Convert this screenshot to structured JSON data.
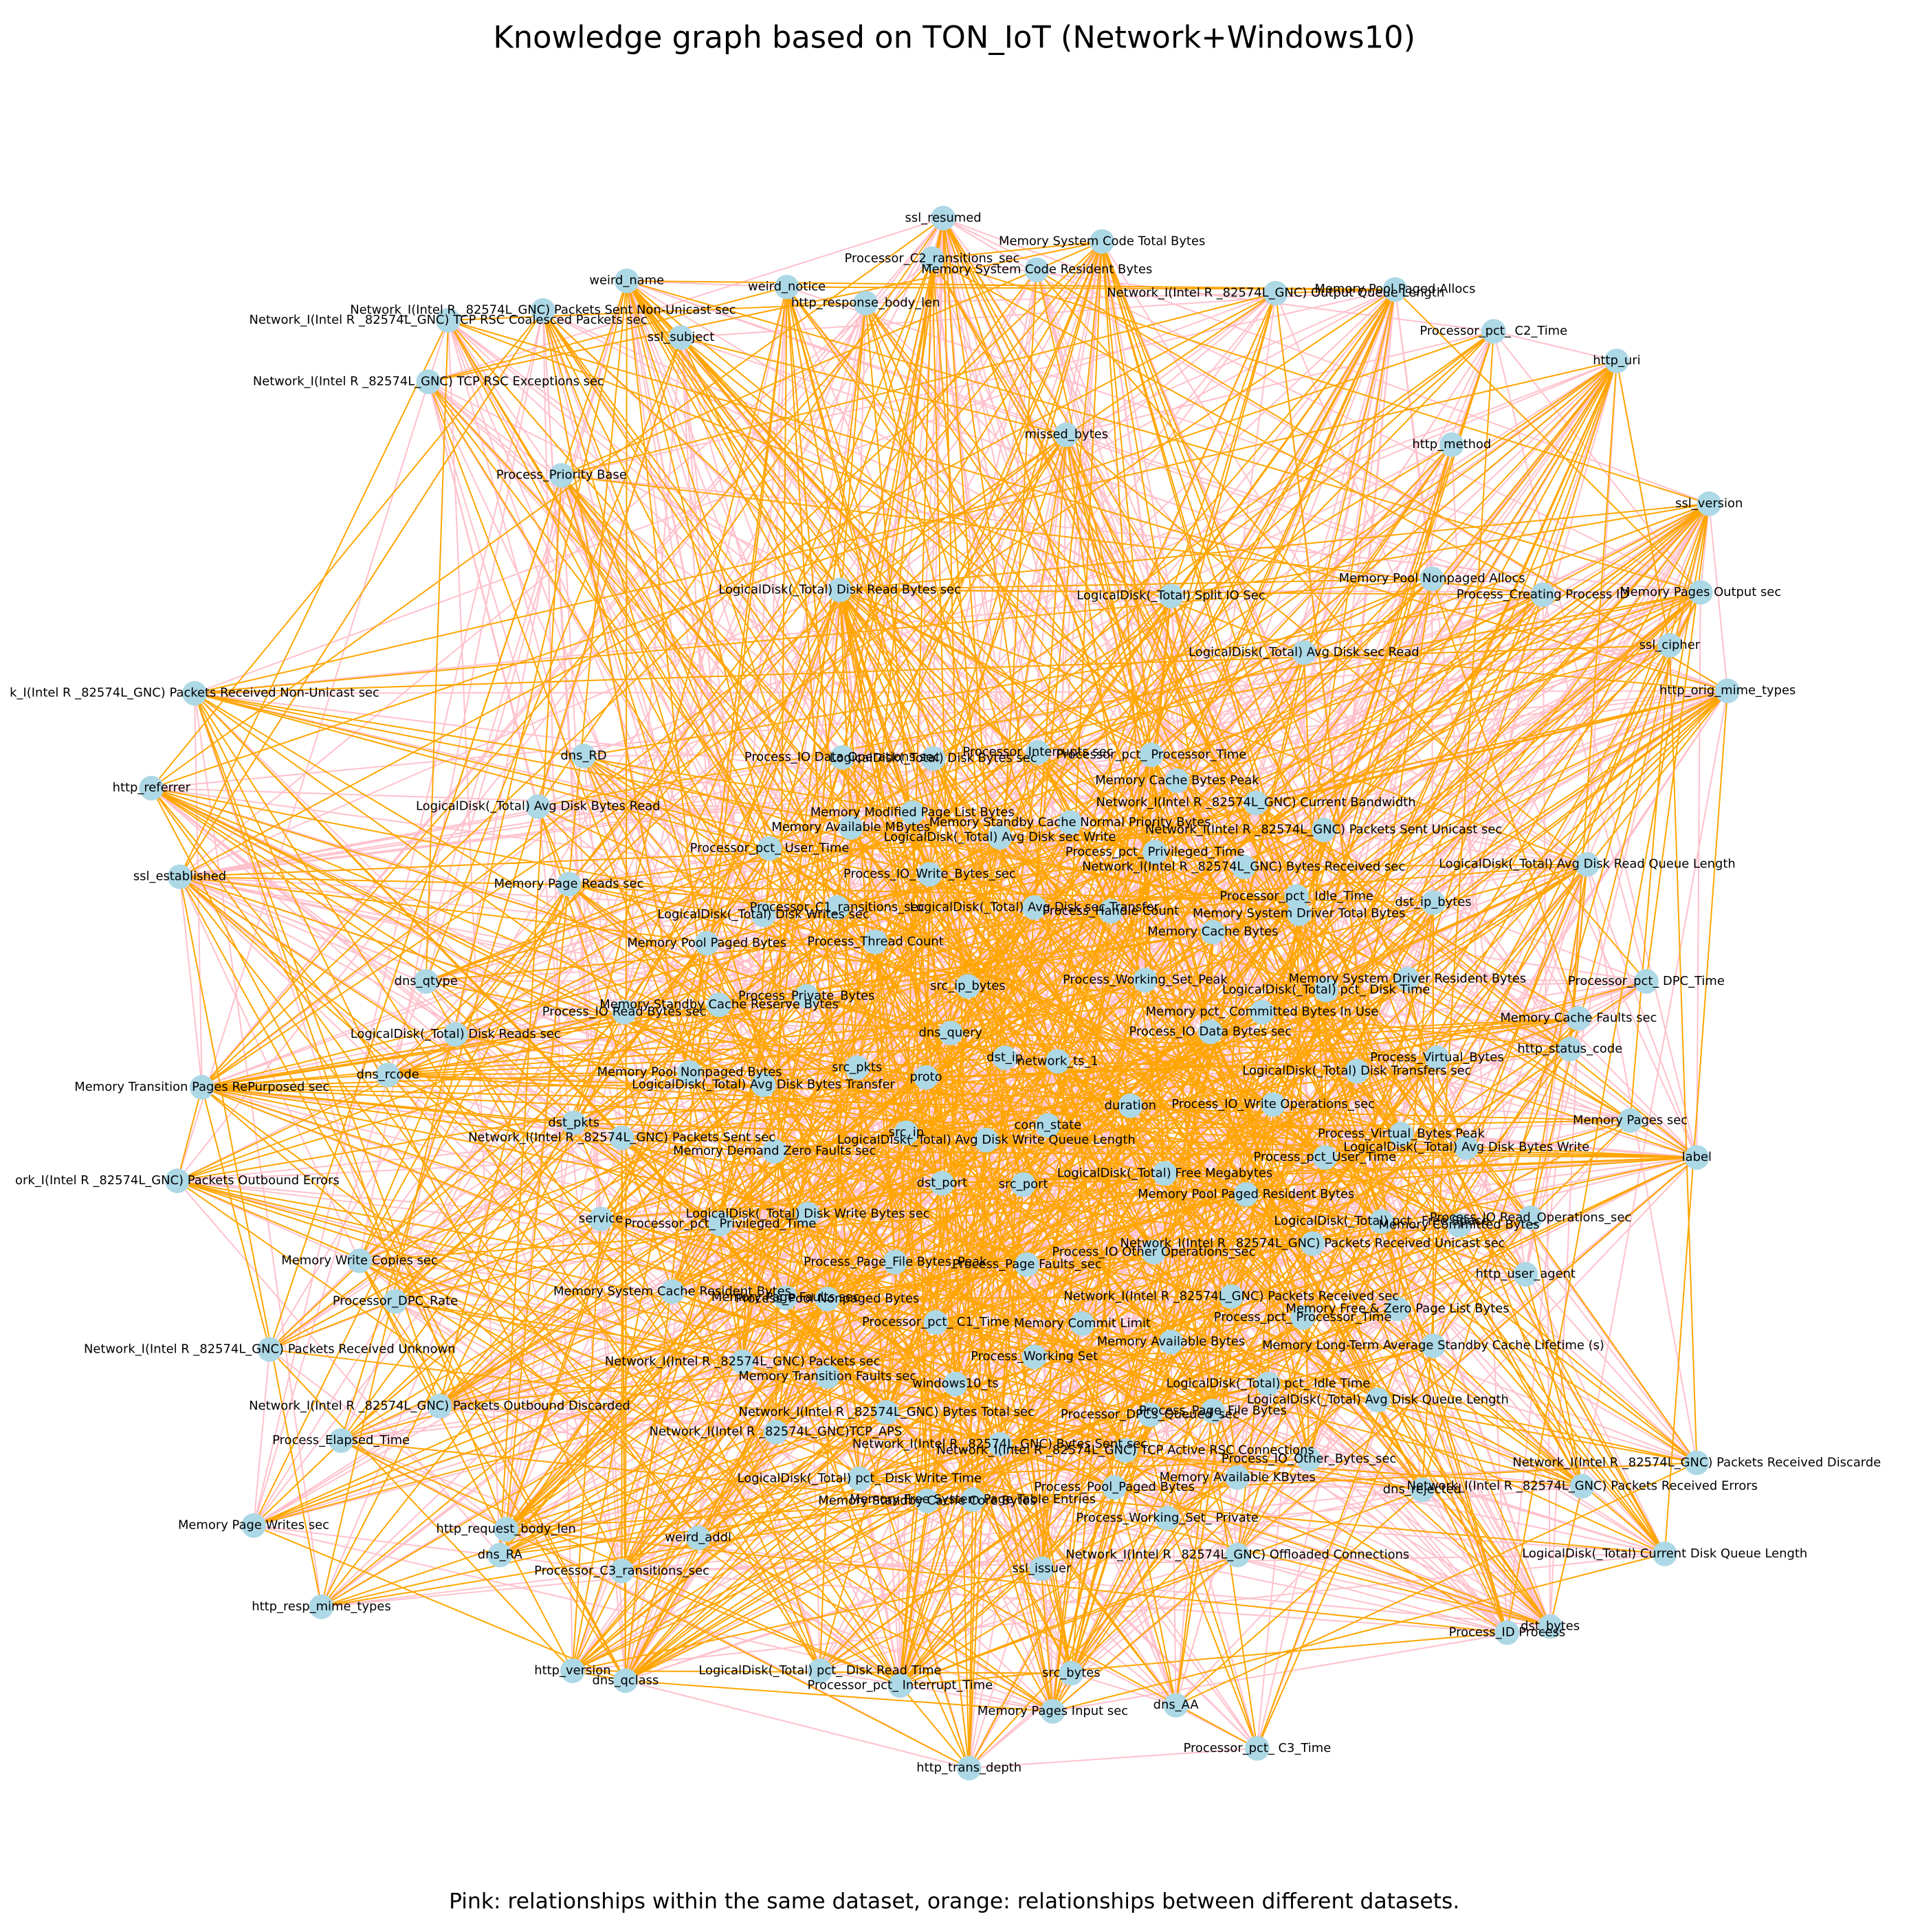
{
  "title": "Knowledge graph based on TON_IoT (Network+Windows10)",
  "caption": "Pink: relationships within the same dataset, orange: relationships between different datasets.",
  "nodes": [
    {
      "label": "ssl_resumed"
    },
    {
      "label": "Memory System Code Total Bytes"
    },
    {
      "label": "Processor_C2_ransitions_sec"
    },
    {
      "label": "Memory System Code Resident Bytes"
    },
    {
      "label": "weird_name"
    },
    {
      "label": "weird_notice"
    },
    {
      "label": "Network_I(Intel R _82574L_GNC) Packets Sent Non-Unicast sec"
    },
    {
      "label": "Network_I(Intel R _82574L_GNC) TCP RSC Coalesced Packets sec"
    },
    {
      "label": "http_response_body_len"
    },
    {
      "label": "Network_I(Intel R _82574L_GNC) Output Queue Length"
    },
    {
      "label": "Memory Pool Paged Allocs"
    },
    {
      "label": "Processor_pct_ C2_Time"
    },
    {
      "label": "ssl_subject"
    },
    {
      "label": "http_uri"
    },
    {
      "label": "Network_I(Intel R _82574L_GNC) TCP RSC Exceptions sec"
    },
    {
      "label": "missed_bytes"
    },
    {
      "label": "http_method"
    },
    {
      "label": "Process_Priority Base"
    },
    {
      "label": "ssl_version"
    },
    {
      "label": "Memory Pool Nonpaged Allocs"
    },
    {
      "label": "LogicalDisk(_Total) Disk Read Bytes sec"
    },
    {
      "label": "LogicalDisk(_Total) Split IO Sec"
    },
    {
      "label": "Process_Creating Process ID"
    },
    {
      "label": "Memory Pages Output sec"
    },
    {
      "label": "ssl_cipher"
    },
    {
      "label": "LogicalDisk(_Total) Avg  Disk sec Read"
    },
    {
      "label": "http_orig_mime_types"
    },
    {
      "label": "k_I(Intel R _82574L_GNC) Packets Received Non-Unicast sec"
    },
    {
      "label": "dns_RD"
    },
    {
      "label": "Process_IO Data Operations sec"
    },
    {
      "label": "LogicalDisk(_Total) Disk Bytes sec"
    },
    {
      "label": "Processor_Interrupts sec"
    },
    {
      "label": "Processor_pct_ Processor_Time"
    },
    {
      "label": "http_referrer"
    },
    {
      "label": "Memory Cache Bytes Peak"
    },
    {
      "label": "LogicalDisk(_Total) Avg  Disk Bytes Read"
    },
    {
      "label": "Network_I(Intel R _82574L_GNC) Current Bandwidth"
    },
    {
      "label": "Memory Modified Page List Bytes"
    },
    {
      "label": "Memory Standby Cache Normal Priority Bytes"
    },
    {
      "label": "Memory Available MBytes"
    },
    {
      "label": "LogicalDisk(_Total) Avg  Disk sec Write"
    },
    {
      "label": "Network_I(Intel R _82574L_GNC) Packets Sent Unicast sec"
    },
    {
      "label": "Processor_pct_ User_Time"
    },
    {
      "label": "Process_pct_ Privileged_Time"
    },
    {
      "label": "ssl_established"
    },
    {
      "label": "LogicalDisk(_Total) Avg  Disk Read Queue Length"
    },
    {
      "label": "Network_I(Intel R _82574L_GNC) Bytes Received sec"
    },
    {
      "label": "Process_IO_Write_Bytes_sec"
    },
    {
      "label": "Memory Page Reads sec"
    },
    {
      "label": "Processor_pct_ Idle_Time"
    },
    {
      "label": "dst_ip_bytes"
    },
    {
      "label": "Processor_C1_ransitions_sec"
    },
    {
      "label": "LogicalDisk(_Total) Avg  Disk sec Transfer"
    },
    {
      "label": "Process_Handle Count"
    },
    {
      "label": "Memory System Driver Total Bytes"
    },
    {
      "label": "LogicalDisk(_Total) Disk Writes sec"
    },
    {
      "label": "Memory Cache Bytes"
    },
    {
      "label": "Memory Pool Paged Bytes"
    },
    {
      "label": "Process_Thread Count"
    },
    {
      "label": "Processor_pct_ DPC_Time"
    },
    {
      "label": "dns_qtype"
    },
    {
      "label": "Memory System Driver Resident Bytes"
    },
    {
      "label": "Process_Working_Set_Peak"
    },
    {
      "label": "src_ip_bytes"
    },
    {
      "label": "LogicalDisk(_Total) pct_ Disk Time"
    },
    {
      "label": "Process_Private_Bytes"
    },
    {
      "label": "Memory Standby Cache Reserve Bytes"
    },
    {
      "label": "Process_IO Read Bytes sec"
    },
    {
      "label": "Memory pct_ Committed Bytes In Use"
    },
    {
      "label": "Memory Cache Faults sec"
    },
    {
      "label": "dns_query"
    },
    {
      "label": "Process_IO Data Bytes sec"
    },
    {
      "label": "LogicalDisk(_Total) Disk Reads sec"
    },
    {
      "label": "http_status_code"
    },
    {
      "label": "dst_ip"
    },
    {
      "label": "network_ts_1"
    },
    {
      "label": "Process_Virtual_Bytes"
    },
    {
      "label": "src_pkts"
    },
    {
      "label": "dns_rcode"
    },
    {
      "label": "Memory Pool Nonpaged Bytes"
    },
    {
      "label": "LogicalDisk(_Total) Disk Transfers sec"
    },
    {
      "label": "proto"
    },
    {
      "label": "Memory Transition Pages RePurposed sec"
    },
    {
      "label": "LogicalDisk(_Total) Avg  Disk Bytes Transfer"
    },
    {
      "label": "duration"
    },
    {
      "label": "Process_IO_Write Operations_sec"
    },
    {
      "label": "dst_pkts"
    },
    {
      "label": "Memory Pages sec"
    },
    {
      "label": "conn_state"
    },
    {
      "label": "src_ip"
    },
    {
      "label": "Network_I(Intel R _82574L_GNC) Packets Sent sec"
    },
    {
      "label": "Process_Virtual_Bytes Peak"
    },
    {
      "label": "LogicalDisk(_Total) Avg  Disk Write Queue Length"
    },
    {
      "label": "LogicalDisk(_Total) Avg  Disk Bytes Write"
    },
    {
      "label": "Memory Demand Zero Faults sec"
    },
    {
      "label": "Process_pct_User_Time"
    },
    {
      "label": "label"
    },
    {
      "label": "LogicalDisk(_Total) Free Megabytes"
    },
    {
      "label": "ork_I(Intel R _82574L_GNC) Packets Outbound Errors"
    },
    {
      "label": "dst_port"
    },
    {
      "label": "src_port"
    },
    {
      "label": "Memory Pool Paged Resident Bytes"
    },
    {
      "label": "LogicalDisk(_Total) Disk Write Bytes sec"
    },
    {
      "label": "service"
    },
    {
      "label": "LogicalDisk(_Total) pct_ Free Space"
    },
    {
      "label": "Memory Committed Bytes"
    },
    {
      "label": "Process_IO Read_Operations_sec"
    },
    {
      "label": "Processor_pct_ Privileged_Time"
    },
    {
      "label": "Network_I(Intel R _82574L_GNC) Packets Received Unicast sec"
    },
    {
      "label": "Process_IO Other Operations_sec"
    },
    {
      "label": "Memory Write Copies sec"
    },
    {
      "label": "Process_Page_File Bytes_Peak"
    },
    {
      "label": "Process_Page Faults_sec"
    },
    {
      "label": "http_user_agent"
    },
    {
      "label": "Memory System Cache Resident Bytes"
    },
    {
      "label": "Memory Page Faults sec"
    },
    {
      "label": "Process_Pool Nonpaged Bytes"
    },
    {
      "label": "Processor_DPC_Rate"
    },
    {
      "label": "Network_I(Intel R _82574L_GNC) Packets Received sec"
    },
    {
      "label": "Memory Free & Zero Page List Bytes"
    },
    {
      "label": "Process_pct_ Processor_Time"
    },
    {
      "label": "Memory Commit Limit"
    },
    {
      "label": "Processor_pct_ C1_Time"
    },
    {
      "label": "Memory Available Bytes"
    },
    {
      "label": "Memory Long-Term Average Standby Cache Lifetime (s)"
    },
    {
      "label": "Network_I(Intel R _82574L_GNC) Packets Received Unknown"
    },
    {
      "label": "Network_I(Intel R _82574L_GNC) Packets sec"
    },
    {
      "label": "Process_Working Set"
    },
    {
      "label": "Memory Transition Faults sec"
    },
    {
      "label": "windows10_ts"
    },
    {
      "label": "LogicalDisk(_Total) pct_ Idle Time"
    },
    {
      "label": "LogicalDisk(_Total) Avg  Disk Queue Length"
    },
    {
      "label": "Network_I(Intel R _82574L_GNC) Packets Outbound Discarded"
    },
    {
      "label": "Network_I(Intel R _82574L_GNC) Bytes Total sec"
    },
    {
      "label": "Processor_DPCs_Queued_sec"
    },
    {
      "label": "Process_Page_File Bytes"
    },
    {
      "label": "Network_I(Intel R _82574L_GNC)TCP_APS"
    },
    {
      "label": "Process_Elapsed_Time"
    },
    {
      "label": "Network_I(Intel R _82574L_GNC) Bytes Sent sec"
    },
    {
      "label": "Network_I(Intel R _82574L_GNC) TCP Active RSC Connections"
    },
    {
      "label": "Process_IO_Other_Bytes_sec"
    },
    {
      "label": "Network_I(Intel R _82574L_GNC) Packets Received Discarde"
    },
    {
      "label": "LogicalDisk(_Total) pct_ Disk Write Time"
    },
    {
      "label": "Memory Available KBytes"
    },
    {
      "label": "Network_I(Intel R _82574L_GNC) Packets Received Errors"
    },
    {
      "label": "dns_rejected"
    },
    {
      "label": "Process_Pool_Paged Bytes"
    },
    {
      "label": "Memory Standby Cache Core Bytes"
    },
    {
      "label": "Memory Free System Page Table Entries"
    },
    {
      "label": "Process_Working_Set_ Private"
    },
    {
      "label": "Memory Page Writes sec"
    },
    {
      "label": "http_request_body_len"
    },
    {
      "label": "weird_addl"
    },
    {
      "label": "dns_RA"
    },
    {
      "label": "ssl_issuer"
    },
    {
      "label": "Network_I(Intel R _82574L_GNC) Offloaded Connections"
    },
    {
      "label": "LogicalDisk(_Total) Current Disk Queue Length"
    },
    {
      "label": "Processor_C3_ransitions_sec"
    },
    {
      "label": "http_resp_mime_types"
    },
    {
      "label": "dst_bytes"
    },
    {
      "label": "Process_ID Process"
    },
    {
      "label": "http_version"
    },
    {
      "label": "dns_qclass"
    },
    {
      "label": "LogicalDisk(_Total) pct_ Disk Read Time"
    },
    {
      "label": "src_bytes"
    },
    {
      "label": "Processor_pct_ Interrupt_Time"
    },
    {
      "label": "dns_AA"
    },
    {
      "label": "Memory Pages Input sec"
    },
    {
      "label": "Processor_pct_ C3_Time"
    },
    {
      "label": "http_trans_depth"
    }
  ]
}
